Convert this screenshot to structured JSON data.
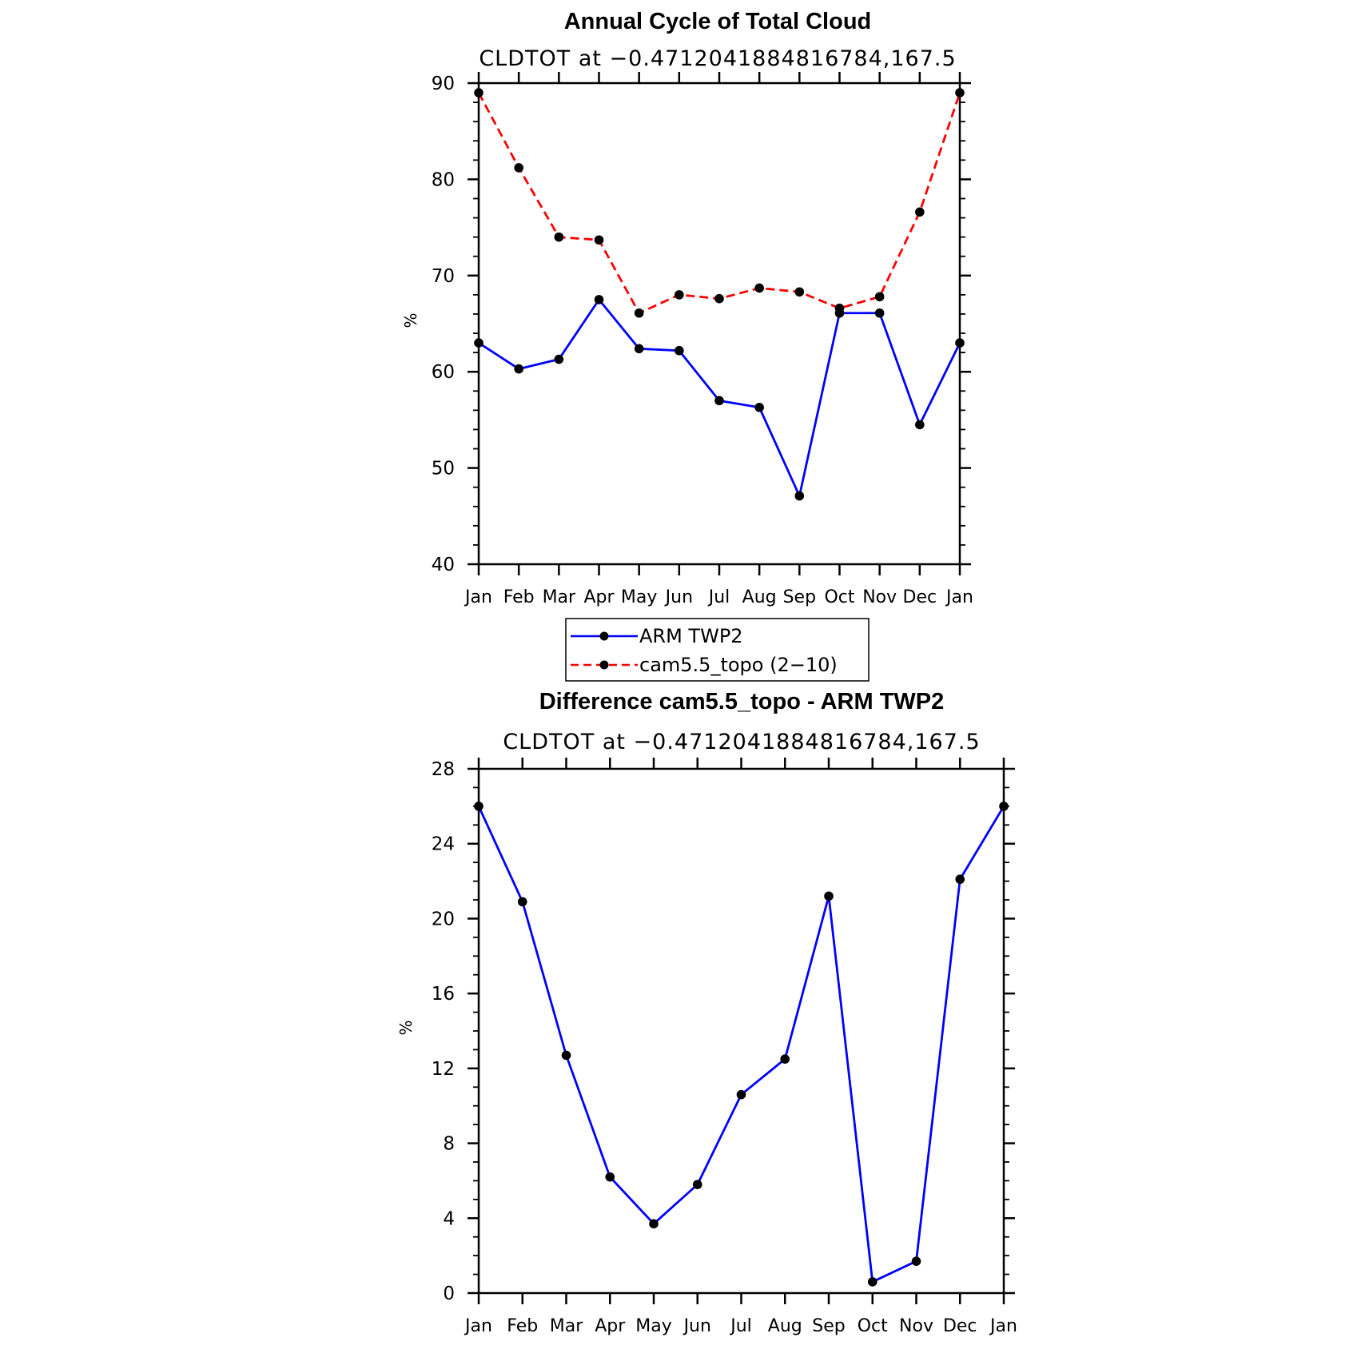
{
  "colors": {
    "obs": "#0000ff",
    "model": "#ff0000",
    "marker": "#000000",
    "axis": "#000000"
  },
  "legend": {
    "placement": "between panels",
    "entries": [
      {
        "label": "ARM TWP2",
        "color": "#0000ff",
        "dash": "solid"
      },
      {
        "label": "cam5.5_topo (2−10)",
        "color": "#ff0000",
        "dash": "dashed"
      }
    ]
  },
  "chart_data": [
    {
      "type": "line",
      "title": "Annual Cycle of Total Cloud",
      "subtitle": "CLDTOT at −0.4712041884816784,167.5",
      "xlabel": "",
      "ylabel": "%",
      "categories": [
        "Jan",
        "Feb",
        "Mar",
        "Apr",
        "May",
        "Jun",
        "Jul",
        "Aug",
        "Sep",
        "Oct",
        "Nov",
        "Dec",
        "Jan"
      ],
      "ylim": [
        40,
        90
      ],
      "yticks": [
        40,
        50,
        60,
        70,
        80,
        90
      ],
      "ytick_labels": [
        "40",
        "50",
        "60",
        "70",
        "80",
        "90"
      ],
      "minor_step": 2,
      "grid": false,
      "series": [
        {
          "name": "ARM TWP2",
          "color": "#0000ff",
          "dash": "solid",
          "values": [
            63.0,
            60.3,
            61.3,
            67.5,
            62.4,
            62.2,
            57.0,
            56.3,
            47.1,
            66.1,
            66.1,
            54.5,
            63.0
          ]
        },
        {
          "name": "cam5.5_topo (2−10)",
          "color": "#ff0000",
          "dash": "dashed",
          "values": [
            89.0,
            81.2,
            74.0,
            73.7,
            66.1,
            68.0,
            67.6,
            68.7,
            68.3,
            66.6,
            67.8,
            76.6,
            89.0
          ]
        }
      ]
    },
    {
      "type": "line",
      "title": "Difference cam5.5_topo - ARM TWP2",
      "subtitle": "CLDTOT at −0.4712041884816784,167.5",
      "xlabel": "",
      "ylabel": "%",
      "categories": [
        "Jan",
        "Feb",
        "Mar",
        "Apr",
        "May",
        "Jun",
        "Jul",
        "Aug",
        "Sep",
        "Oct",
        "Nov",
        "Dec",
        "Jan"
      ],
      "ylim": [
        0,
        28
      ],
      "yticks": [
        0,
        4,
        8,
        12,
        16,
        20,
        24,
        28
      ],
      "ytick_labels": [
        "0",
        "4",
        "8",
        "12",
        "16",
        "20",
        "24",
        "28"
      ],
      "minor_step": 1,
      "grid": false,
      "series": [
        {
          "name": "Difference",
          "color": "#0000ff",
          "dash": "solid",
          "values": [
            26.0,
            20.9,
            12.7,
            6.2,
            3.7,
            5.8,
            10.6,
            12.5,
            21.2,
            0.6,
            1.7,
            22.1,
            26.0
          ]
        }
      ]
    }
  ]
}
